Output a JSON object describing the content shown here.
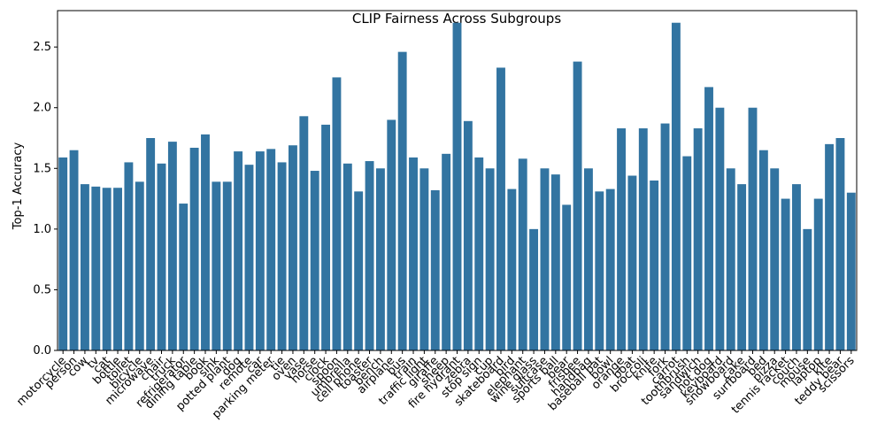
{
  "chart_data": {
    "type": "bar",
    "title": "CLIP Fairness Across Subgroups",
    "y_label": "Top-1 Accuracy",
    "categories": [
      "motorcycle",
      "person",
      "cow",
      "tv",
      "cat",
      "bottle",
      "toilet",
      "bicycle",
      "microwave",
      "chair",
      "truck",
      "refrigerator",
      "dining table",
      "book",
      "sink",
      "potted plant",
      "dog",
      "remote",
      "car",
      "parking meter",
      "tie",
      "oven",
      "vase",
      "horse",
      "clock",
      "spoon",
      "umbrella",
      "cell phone",
      "toaster",
      "bench",
      "airplane",
      "bus",
      "train",
      "traffic light",
      "giraffe",
      "sheep",
      "fire hydrant",
      "zebra",
      "stop sign",
      "cup",
      "skateboard",
      "bird",
      "elephant",
      "wine glass",
      "suitcase",
      "sports ball",
      "bear",
      "frisbee",
      "handbag",
      "baseball bat",
      "bowl",
      "orange",
      "boat",
      "broccoli",
      "knife",
      "fork",
      "carrot",
      "toothbrush",
      "sandwich",
      "hot dog",
      "keyboard",
      "snowboard",
      "cake",
      "surfboard",
      "bed",
      "pizza",
      "tennis racket",
      "couch",
      "mouse",
      "laptop",
      "kite",
      "teddy bear",
      "scissors"
    ],
    "values": [
      1.59,
      1.65,
      1.37,
      1.35,
      1.34,
      1.34,
      1.55,
      1.39,
      1.75,
      1.54,
      1.72,
      1.21,
      1.67,
      1.78,
      1.39,
      1.39,
      1.64,
      1.53,
      1.64,
      1.66,
      1.55,
      1.69,
      1.93,
      1.48,
      1.86,
      2.25,
      1.54,
      1.31,
      1.56,
      1.5,
      1.9,
      2.46,
      1.59,
      1.5,
      1.32,
      1.62,
      2.7,
      1.89,
      1.59,
      1.5,
      2.33,
      1.33,
      1.58,
      1.0,
      1.5,
      1.45,
      1.2,
      2.38,
      1.5,
      1.31,
      1.33,
      1.83,
      1.44,
      1.83,
      1.4,
      1.87,
      2.7,
      1.6,
      1.83,
      2.17,
      2.0,
      1.5,
      1.37,
      2.0,
      1.65,
      1.5,
      1.25,
      1.37,
      1.0,
      1.25,
      1.7,
      1.75,
      1.3
    ],
    "color": "#3274a1",
    "ylim": [
      0,
      2.8
    ],
    "yticks": [
      {
        "value": 0,
        "label": "0.0"
      },
      {
        "value": 0.5,
        "label": "0.5"
      },
      {
        "value": 1,
        "label": "1.0"
      },
      {
        "value": 1.5,
        "label": "1.5"
      },
      {
        "value": 2,
        "label": "2.0"
      },
      {
        "value": 2.5,
        "label": "2.5"
      }
    ]
  }
}
